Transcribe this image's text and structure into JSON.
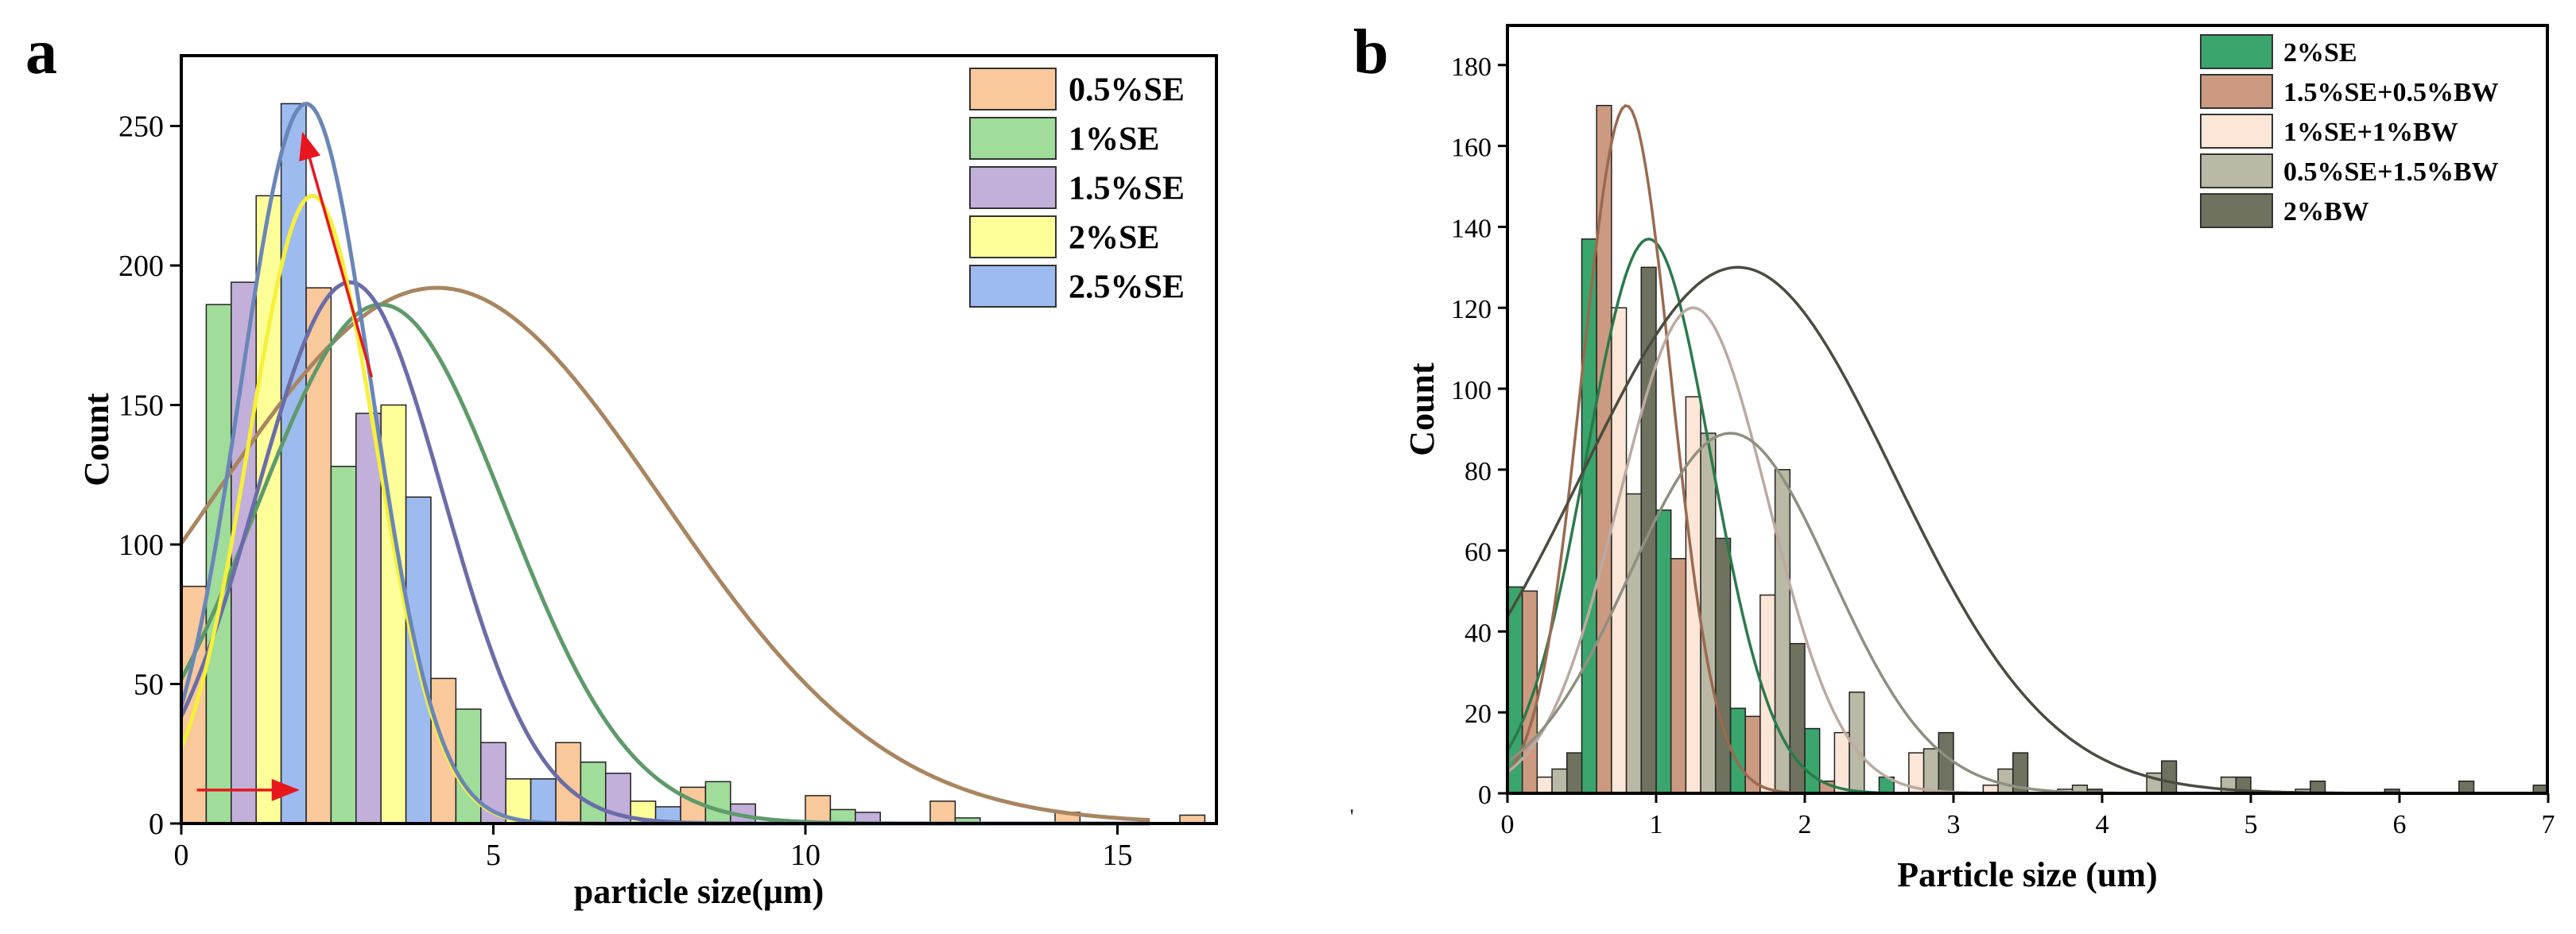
{
  "chart_data": [
    {
      "type": "bar",
      "panel_label": "a",
      "xlabel": "particle size(μm)",
      "ylabel": "Count",
      "xlim": [
        0,
        16
      ],
      "ylim": [
        0,
        275
      ],
      "xticks": [
        "0",
        "5",
        "10",
        "15"
      ],
      "xtick_values": [
        0,
        5,
        10,
        15
      ],
      "yticks": [
        "0",
        "50",
        "100",
        "150",
        "200",
        "250"
      ],
      "ytick_values": [
        0,
        50,
        100,
        150,
        200,
        250
      ],
      "bin_width": 2,
      "bin_starts": [
        0,
        2,
        4,
        6,
        8,
        10,
        12,
        14,
        16
      ],
      "legend_position": "top-right",
      "series": [
        {
          "name": "0.5%SE",
          "color": "#F9C89B",
          "values": [
            85,
            192,
            52,
            29,
            13,
            10,
            8,
            4,
            3
          ],
          "fit": {
            "mean": 4.1,
            "sd": 3.6,
            "peak": 192,
            "color": "#A98560"
          }
        },
        {
          "name": "1%SE",
          "color": "#A0DC9A",
          "values": [
            186,
            128,
            41,
            22,
            15,
            5,
            2,
            0,
            0
          ],
          "fit": {
            "mean": 3.2,
            "sd": 2.0,
            "peak": 186,
            "color": "#5E9A6A"
          }
        },
        {
          "name": "1.5%SE",
          "color": "#C2B0DA",
          "values": [
            194,
            147,
            29,
            18,
            7,
            4,
            0,
            0,
            0
          ],
          "fit": {
            "mean": 2.7,
            "sd": 1.5,
            "peak": 194,
            "color": "#6A6DA8"
          }
        },
        {
          "name": "2%SE",
          "color": "#FFFF99",
          "values": [
            225,
            150,
            16,
            8,
            0,
            0,
            0,
            0,
            0
          ],
          "fit": {
            "mean": 2.1,
            "sd": 1.02,
            "peak": 225,
            "color": "#F5F03A"
          }
        },
        {
          "name": "2.5%SE",
          "color": "#9DBBEF",
          "values": [
            258,
            117,
            16,
            6,
            0,
            0,
            0,
            0,
            0
          ],
          "fit": {
            "mean": 2.0,
            "sd": 1.05,
            "peak": 258,
            "color": "#6A86B8"
          }
        }
      ],
      "annotations": [
        {
          "type": "arrow",
          "color": "#E8171D",
          "from": [
            0.25,
            12
          ],
          "to": [
            1.85,
            12
          ]
        },
        {
          "type": "arrow",
          "color": "#E8171D",
          "from": [
            3.05,
            160
          ],
          "to": [
            1.95,
            247
          ]
        }
      ]
    },
    {
      "type": "bar",
      "panel_label": "b",
      "xlabel": "Particle size (um)",
      "ylabel": "Count",
      "xlim": [
        0,
        7
      ],
      "ylim": [
        0,
        190
      ],
      "xticks": [
        "0",
        "1",
        "2",
        "3",
        "4",
        "5",
        "6",
        "7"
      ],
      "xtick_values": [
        0,
        1,
        2,
        3,
        4,
        5,
        6,
        7
      ],
      "yticks": [
        "0",
        "20",
        "40",
        "60",
        "80",
        "100",
        "120",
        "140",
        "160",
        "180"
      ],
      "ytick_values": [
        0,
        20,
        40,
        60,
        80,
        100,
        120,
        140,
        160,
        180
      ],
      "bin_width": 0.5,
      "bin_starts": [
        0,
        0.5,
        1.0,
        1.5,
        2.0,
        2.5,
        3.0,
        3.5,
        4.0,
        4.5,
        5.0,
        5.5,
        6.0,
        6.5
      ],
      "legend_position": "top-right",
      "series": [
        {
          "name": "2%SE",
          "color": "#3AA56C",
          "values": [
            51,
            137,
            70,
            21,
            16,
            4,
            0,
            0,
            0,
            0,
            0,
            0,
            0,
            0
          ],
          "fit": {
            "mean": 0.95,
            "sd": 0.42,
            "peak": 137,
            "color": "#2A7A4A"
          }
        },
        {
          "name": "1.5%SE+0.5%BW",
          "color": "#CC9A80",
          "values": [
            50,
            170,
            58,
            19,
            3,
            0,
            0,
            0,
            0,
            0,
            0,
            0,
            0,
            0
          ],
          "fit": {
            "mean": 0.8,
            "sd": 0.3,
            "peak": 170,
            "color": "#9A6A50"
          }
        },
        {
          "name": "1%SE+1%BW",
          "color": "#FBE6D8",
          "values": [
            4,
            120,
            98,
            49,
            15,
            10,
            2,
            1,
            0,
            0,
            0,
            0,
            0,
            0
          ],
          "fit": {
            "mean": 1.25,
            "sd": 0.5,
            "peak": 120,
            "color": "#BCAAA0"
          }
        },
        {
          "name": "0.5%SE+1.5%BW",
          "color": "#B9B9A5",
          "values": [
            6,
            74,
            89,
            80,
            25,
            11,
            6,
            2,
            5,
            4,
            1,
            0,
            0,
            0
          ],
          "fit": {
            "mean": 1.5,
            "sd": 0.68,
            "peak": 89,
            "color": "#8F8F80"
          }
        },
        {
          "name": "2%BW",
          "color": "#6E725E",
          "values": [
            10,
            130,
            63,
            37,
            0,
            15,
            10,
            1,
            8,
            4,
            3,
            1,
            3,
            2
          ],
          "fit": {
            "mean": 1.55,
            "sd": 1.05,
            "peak": 130,
            "color": "#4A4C40"
          }
        }
      ]
    }
  ],
  "misc": {
    "separator_mark": "'"
  }
}
